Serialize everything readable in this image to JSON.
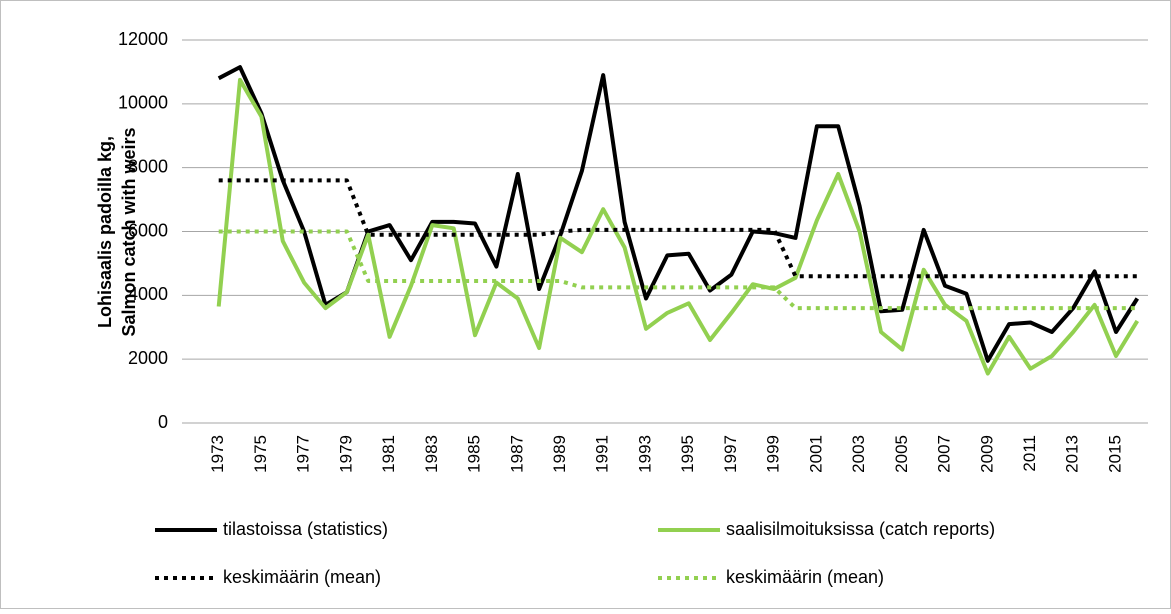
{
  "chart_data": {
    "type": "line",
    "ylabel": [
      "Lohisaalis padoilla kg,",
      "Salmon catch with weirs"
    ],
    "categories": [
      "1973",
      null,
      "1975",
      null,
      "1977",
      null,
      "1979",
      null,
      "1981",
      null,
      "1983",
      null,
      "1985",
      null,
      "1987",
      null,
      "1989",
      null,
      "1991",
      null,
      "1993",
      null,
      "1995",
      null,
      "1997",
      null,
      "1999",
      null,
      "2001",
      null,
      "2003",
      null,
      "2005",
      null,
      "2007",
      null,
      "2009",
      null,
      "2011",
      null,
      "2013",
      null,
      "2015",
      null
    ],
    "series": [
      {
        "name": "tilastoissa (statistics)",
        "color": "#000000",
        "style": "solid",
        "values": [
          10800,
          11150,
          9700,
          7600,
          6000,
          3700,
          4100,
          6000,
          6200,
          5100,
          6300,
          6300,
          6250,
          4900,
          7800,
          4200,
          5900,
          7900,
          10900,
          6300,
          3900,
          5250,
          5300,
          4150,
          4650,
          6000,
          5950,
          5800,
          9300,
          9300,
          6800,
          3500,
          3550,
          6050,
          4300,
          4050,
          1950,
          3100,
          3150,
          2850,
          3600,
          4750,
          2850,
          3900
        ]
      },
      {
        "name": "saalisilmoituksissa (catch reports)",
        "color": "#92d050",
        "style": "solid",
        "values": [
          3650,
          10750,
          9600,
          5700,
          4400,
          3600,
          4100,
          5900,
          2700,
          4300,
          6200,
          6100,
          2750,
          4400,
          3900,
          2350,
          5800,
          5350,
          6700,
          5500,
          2950,
          3450,
          3750,
          2600,
          3450,
          4350,
          4200,
          4550,
          6350,
          7800,
          6000,
          2850,
          2300,
          4800,
          3700,
          3200,
          1550,
          2700,
          1700,
          2100,
          2850,
          3700,
          2100,
          3200
        ]
      },
      {
        "name": "keskimäärin (mean)",
        "color": "#000000",
        "style": "dotted",
        "values": [
          7600,
          7600,
          7600,
          7600,
          7600,
          7600,
          7600,
          5900,
          5900,
          5900,
          5900,
          5900,
          5900,
          5900,
          5900,
          5900,
          6000,
          6050,
          6050,
          6050,
          6050,
          6050,
          6050,
          6050,
          6050,
          6050,
          6050,
          4600,
          4600,
          4600,
          4600,
          4600,
          4600,
          4600,
          4600,
          4600,
          4600,
          4600,
          4600,
          4600,
          4600,
          4600,
          4600,
          4600
        ]
      },
      {
        "name": "keskimäärin (mean)",
        "color": "#92d050",
        "style": "dotted",
        "values": [
          6000,
          6000,
          6000,
          6000,
          6000,
          6000,
          6000,
          4450,
          4450,
          4450,
          4450,
          4450,
          4450,
          4450,
          4450,
          4450,
          4450,
          4250,
          4250,
          4250,
          4250,
          4250,
          4250,
          4250,
          4250,
          4250,
          4250,
          3600,
          3600,
          3600,
          3600,
          3600,
          3600,
          3600,
          3600,
          3600,
          3600,
          3600,
          3600,
          3600,
          3600,
          3600,
          3600,
          3600
        ]
      }
    ],
    "ylim": [
      0,
      12000
    ],
    "yticks": [
      0,
      2000,
      4000,
      6000,
      8000,
      10000,
      12000
    ],
    "grid": true
  }
}
